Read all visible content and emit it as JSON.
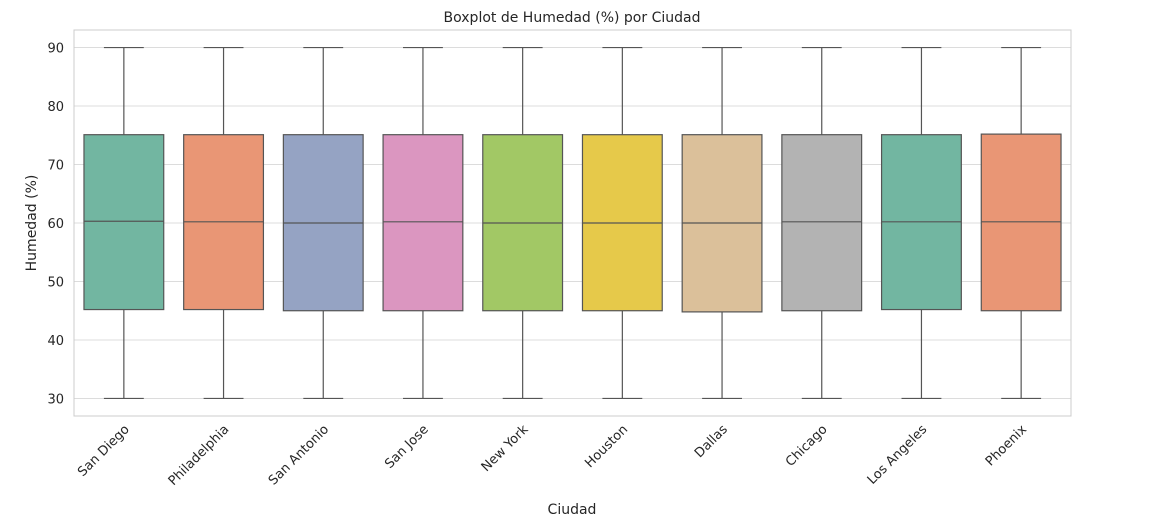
{
  "chart_data": {
    "type": "boxplot",
    "title": "Boxplot de Humedad (%) por Ciudad",
    "xlabel": "Ciudad",
    "ylabel": "Humedad (%)",
    "ylim": [
      27,
      93
    ],
    "yticks": [
      30,
      40,
      50,
      60,
      70,
      80,
      90
    ],
    "grid": true,
    "categories": [
      "San Diego",
      "Philadelphia",
      "San Antonio",
      "San Jose",
      "New York",
      "Houston",
      "Dallas",
      "Chicago",
      "Los Angeles",
      "Phoenix"
    ],
    "series": [
      {
        "category": "San Diego",
        "min": 30,
        "q1": 45.2,
        "median": 60.3,
        "q3": 75.1,
        "max": 90,
        "color": "#72b6a1"
      },
      {
        "category": "Philadelphia",
        "min": 30,
        "q1": 45.2,
        "median": 60.2,
        "q3": 75.1,
        "max": 90,
        "color": "#e99675"
      },
      {
        "category": "San Antonio",
        "min": 30,
        "q1": 45.0,
        "median": 60.0,
        "q3": 75.1,
        "max": 90,
        "color": "#95a3c3"
      },
      {
        "category": "San Jose",
        "min": 30,
        "q1": 45.0,
        "median": 60.2,
        "q3": 75.1,
        "max": 90,
        "color": "#db96c0"
      },
      {
        "category": "New York",
        "min": 30,
        "q1": 45.0,
        "median": 60.0,
        "q3": 75.1,
        "max": 90,
        "color": "#a2c865"
      },
      {
        "category": "Houston",
        "min": 30,
        "q1": 45.0,
        "median": 60.0,
        "q3": 75.1,
        "max": 90,
        "color": "#e6c94a"
      },
      {
        "category": "Dallas",
        "min": 30,
        "q1": 44.8,
        "median": 60.0,
        "q3": 75.1,
        "max": 90,
        "color": "#dbc09a"
      },
      {
        "category": "Chicago",
        "min": 30,
        "q1": 45.0,
        "median": 60.2,
        "q3": 75.1,
        "max": 90,
        "color": "#b3b3b3"
      },
      {
        "category": "Los Angeles",
        "min": 30,
        "q1": 45.2,
        "median": 60.2,
        "q3": 75.1,
        "max": 90,
        "color": "#72b6a1"
      },
      {
        "category": "Phoenix",
        "min": 30,
        "q1": 45.0,
        "median": 60.2,
        "q3": 75.2,
        "max": 90,
        "color": "#e99675"
      }
    ]
  }
}
